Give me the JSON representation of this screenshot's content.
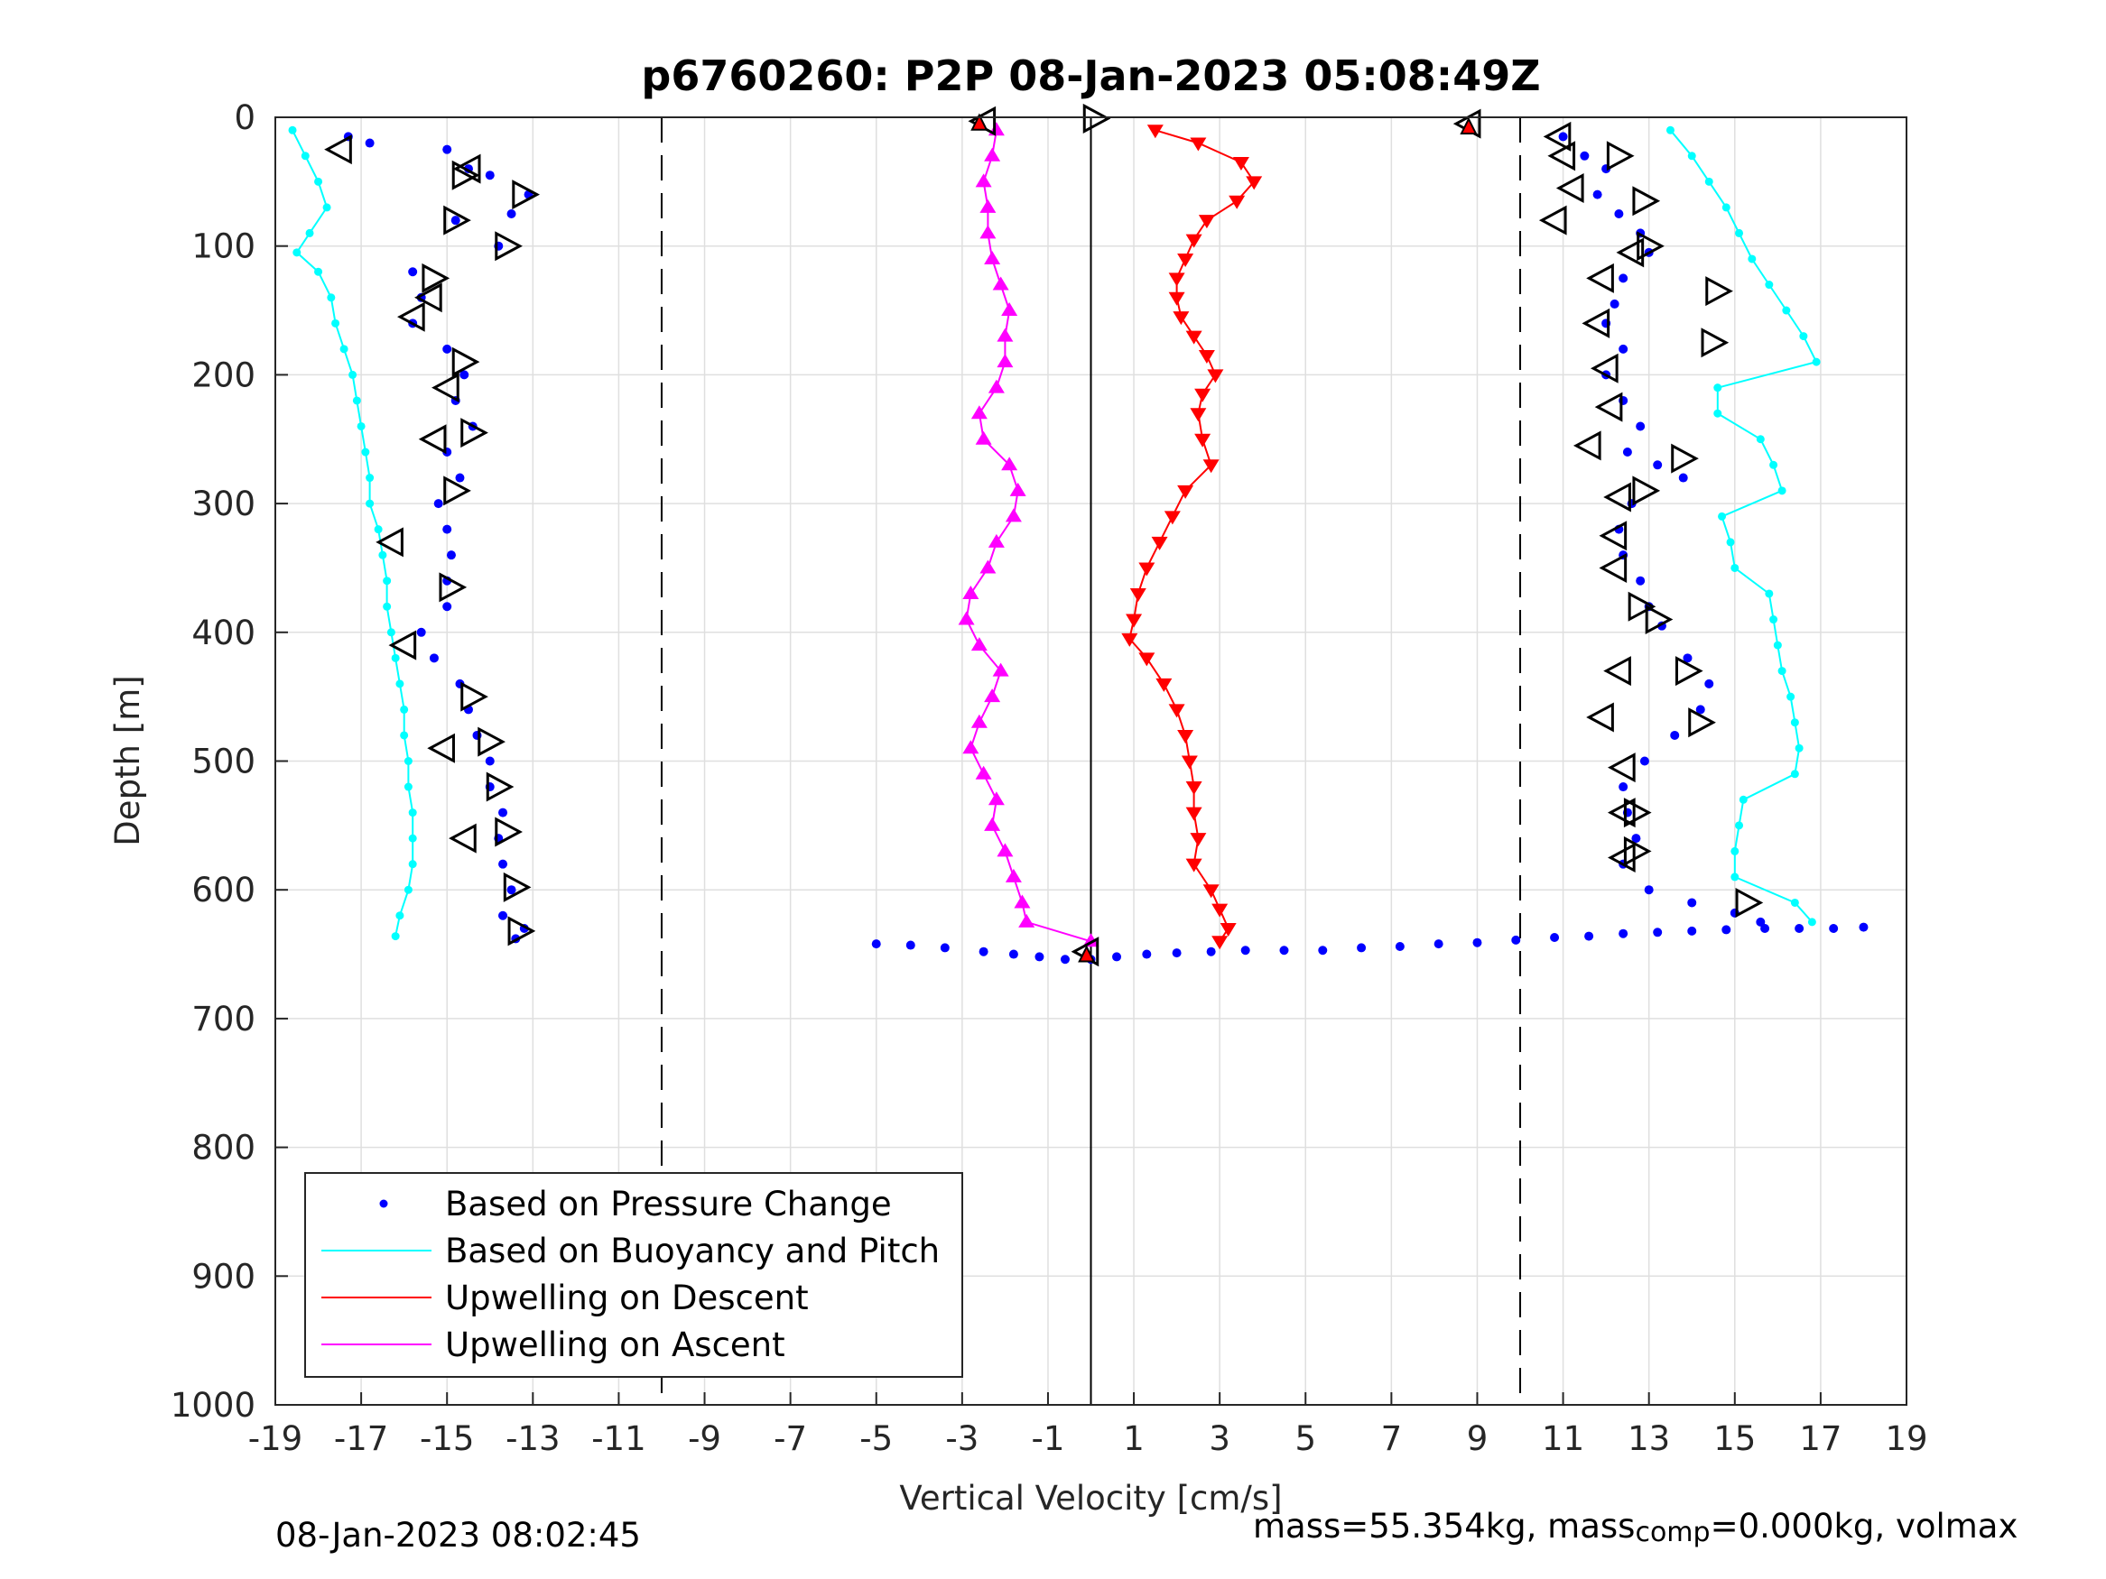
{
  "chart_data": {
    "type": "scatter",
    "title": "p6760260: P2P 08-Jan-2023 05:08:49Z",
    "xlabel": "Vertical Velocity [cm/s]",
    "ylabel": "Depth [m]",
    "xlim": [
      -19,
      19
    ],
    "ylim": [
      0,
      1000
    ],
    "y_reversed": true,
    "grid": true,
    "xticks": [
      "-19",
      "-17",
      "-15",
      "-13",
      "-11",
      "-9",
      "-7",
      "-5",
      "-3",
      "-1",
      "1",
      "3",
      "5",
      "7",
      "9",
      "11",
      "13",
      "15",
      "17",
      "19"
    ],
    "yticks": [
      "0",
      "100",
      "200",
      "300",
      "400",
      "500",
      "600",
      "700",
      "800",
      "900",
      "1000"
    ],
    "reference_lines": {
      "dashed_x": [
        -10,
        10
      ],
      "solid_x": [
        0
      ]
    },
    "legend": {
      "position": "bottom-left",
      "entries": [
        {
          "label": "Based on Pressure Change",
          "color": "#0000ff",
          "style": "dot"
        },
        {
          "label": "Based on Buoyancy and Pitch",
          "color": "#00ffff",
          "style": "line"
        },
        {
          "label": "Upwelling on Descent",
          "color": "#ff0000",
          "style": "line"
        },
        {
          "label": "Upwelling on Ascent",
          "color": "#ff00ff",
          "style": "line"
        }
      ]
    },
    "series": [
      {
        "key": "pressure_down",
        "color": "#0000ff",
        "points": [
          [
            -17.3,
            15
          ],
          [
            -16.8,
            20
          ],
          [
            -15.0,
            25
          ],
          [
            -14.5,
            40
          ],
          [
            -14.0,
            45
          ],
          [
            -13.1,
            60
          ],
          [
            -13.5,
            75
          ],
          [
            -14.8,
            80
          ],
          [
            -13.8,
            100
          ],
          [
            -15.8,
            120
          ],
          [
            -15.6,
            140
          ],
          [
            -15.8,
            160
          ],
          [
            -15.0,
            180
          ],
          [
            -14.6,
            200
          ],
          [
            -14.8,
            220
          ],
          [
            -14.4,
            240
          ],
          [
            -15.0,
            260
          ],
          [
            -14.7,
            280
          ],
          [
            -15.2,
            300
          ],
          [
            -15.0,
            320
          ],
          [
            -14.9,
            340
          ],
          [
            -15.0,
            360
          ],
          [
            -15.0,
            380
          ],
          [
            -15.6,
            400
          ],
          [
            -15.3,
            420
          ],
          [
            -14.7,
            440
          ],
          [
            -14.5,
            460
          ],
          [
            -14.3,
            480
          ],
          [
            -14.0,
            500
          ],
          [
            -14.0,
            520
          ],
          [
            -13.7,
            540
          ],
          [
            -13.8,
            560
          ],
          [
            -13.7,
            580
          ],
          [
            -13.5,
            600
          ],
          [
            -13.7,
            620
          ],
          [
            -13.2,
            630
          ],
          [
            -13.4,
            638
          ]
        ]
      },
      {
        "key": "pressure_up",
        "color": "#0000ff",
        "points": [
          [
            11.0,
            15
          ],
          [
            11.5,
            30
          ],
          [
            12.0,
            40
          ],
          [
            11.8,
            60
          ],
          [
            12.3,
            75
          ],
          [
            12.8,
            90
          ],
          [
            13.0,
            105
          ],
          [
            12.4,
            125
          ],
          [
            12.2,
            145
          ],
          [
            12.0,
            160
          ],
          [
            12.4,
            180
          ],
          [
            12.0,
            200
          ],
          [
            12.4,
            220
          ],
          [
            12.8,
            240
          ],
          [
            12.5,
            260
          ],
          [
            13.2,
            270
          ],
          [
            13.8,
            280
          ],
          [
            12.6,
            300
          ],
          [
            12.3,
            320
          ],
          [
            12.4,
            340
          ],
          [
            12.8,
            360
          ],
          [
            13.0,
            380
          ],
          [
            13.3,
            395
          ],
          [
            13.9,
            420
          ],
          [
            14.4,
            440
          ],
          [
            14.2,
            460
          ],
          [
            13.6,
            480
          ],
          [
            12.9,
            500
          ],
          [
            12.4,
            520
          ],
          [
            12.5,
            540
          ],
          [
            12.7,
            560
          ],
          [
            12.4,
            580
          ],
          [
            13.0,
            600
          ],
          [
            14.0,
            610
          ],
          [
            15.0,
            618
          ],
          [
            15.6,
            625
          ]
        ]
      },
      {
        "key": "pressure_bottom",
        "color": "#0000ff",
        "points": [
          [
            -5.0,
            642
          ],
          [
            -4.2,
            643
          ],
          [
            -3.4,
            645
          ],
          [
            -2.5,
            648
          ],
          [
            -1.8,
            650
          ],
          [
            -1.2,
            652
          ],
          [
            -0.6,
            654
          ],
          [
            0.0,
            654
          ],
          [
            0.6,
            652
          ],
          [
            1.3,
            650
          ],
          [
            2.0,
            649
          ],
          [
            2.8,
            648
          ],
          [
            3.6,
            647
          ],
          [
            4.5,
            647
          ],
          [
            5.4,
            647
          ],
          [
            6.3,
            645
          ],
          [
            7.2,
            644
          ],
          [
            8.1,
            642
          ],
          [
            9.0,
            641
          ],
          [
            9.9,
            639
          ],
          [
            10.8,
            637
          ],
          [
            11.6,
            636
          ],
          [
            12.4,
            634
          ],
          [
            13.2,
            633
          ],
          [
            14.0,
            632
          ],
          [
            14.8,
            631
          ],
          [
            15.7,
            630
          ],
          [
            16.5,
            630
          ],
          [
            17.3,
            630
          ],
          [
            18.0,
            629
          ]
        ]
      },
      {
        "key": "buoyancy_down",
        "color": "#00ffff",
        "points": [
          [
            -18.6,
            10
          ],
          [
            -18.3,
            30
          ],
          [
            -18.0,
            50
          ],
          [
            -17.8,
            70
          ],
          [
            -18.2,
            90
          ],
          [
            -18.5,
            105
          ],
          [
            -18.0,
            120
          ],
          [
            -17.7,
            140
          ],
          [
            -17.6,
            160
          ],
          [
            -17.4,
            180
          ],
          [
            -17.2,
            200
          ],
          [
            -17.1,
            220
          ],
          [
            -17.0,
            240
          ],
          [
            -16.9,
            260
          ],
          [
            -16.8,
            280
          ],
          [
            -16.8,
            300
          ],
          [
            -16.6,
            320
          ],
          [
            -16.5,
            340
          ],
          [
            -16.4,
            360
          ],
          [
            -16.4,
            380
          ],
          [
            -16.3,
            400
          ],
          [
            -16.2,
            420
          ],
          [
            -16.1,
            440
          ],
          [
            -16.0,
            460
          ],
          [
            -16.0,
            480
          ],
          [
            -15.9,
            500
          ],
          [
            -15.9,
            520
          ],
          [
            -15.8,
            540
          ],
          [
            -15.8,
            560
          ],
          [
            -15.8,
            580
          ],
          [
            -15.9,
            600
          ],
          [
            -16.1,
            620
          ],
          [
            -16.2,
            636
          ]
        ]
      },
      {
        "key": "buoyancy_up",
        "color": "#00ffff",
        "points": [
          [
            13.5,
            10
          ],
          [
            14.0,
            30
          ],
          [
            14.4,
            50
          ],
          [
            14.8,
            70
          ],
          [
            15.1,
            90
          ],
          [
            15.4,
            110
          ],
          [
            15.8,
            130
          ],
          [
            16.2,
            150
          ],
          [
            16.6,
            170
          ],
          [
            16.9,
            190
          ],
          [
            14.6,
            210
          ],
          [
            14.6,
            230
          ],
          [
            15.6,
            250
          ],
          [
            15.9,
            270
          ],
          [
            16.1,
            290
          ],
          [
            14.7,
            310
          ],
          [
            14.9,
            330
          ],
          [
            15.0,
            350
          ],
          [
            15.8,
            370
          ],
          [
            15.9,
            390
          ],
          [
            16.0,
            410
          ],
          [
            16.1,
            430
          ],
          [
            16.3,
            450
          ],
          [
            16.4,
            470
          ],
          [
            16.5,
            490
          ],
          [
            16.4,
            510
          ],
          [
            15.2,
            530
          ],
          [
            15.1,
            550
          ],
          [
            15.0,
            570
          ],
          [
            15.0,
            590
          ],
          [
            16.4,
            610
          ],
          [
            16.8,
            625
          ]
        ]
      },
      {
        "key": "upwelling_descent",
        "color": "#ff0000",
        "points": [
          [
            1.5,
            10
          ],
          [
            2.5,
            20
          ],
          [
            3.5,
            35
          ],
          [
            3.8,
            50
          ],
          [
            3.4,
            65
          ],
          [
            2.7,
            80
          ],
          [
            2.4,
            95
          ],
          [
            2.2,
            110
          ],
          [
            2.0,
            125
          ],
          [
            2.0,
            140
          ],
          [
            2.1,
            155
          ],
          [
            2.4,
            170
          ],
          [
            2.7,
            185
          ],
          [
            2.9,
            200
          ],
          [
            2.6,
            215
          ],
          [
            2.5,
            230
          ],
          [
            2.6,
            250
          ],
          [
            2.8,
            270
          ],
          [
            2.2,
            290
          ],
          [
            1.9,
            310
          ],
          [
            1.6,
            330
          ],
          [
            1.3,
            350
          ],
          [
            1.1,
            370
          ],
          [
            1.0,
            390
          ],
          [
            0.9,
            405
          ],
          [
            1.3,
            420
          ],
          [
            1.7,
            440
          ],
          [
            2.0,
            460
          ],
          [
            2.2,
            480
          ],
          [
            2.3,
            500
          ],
          [
            2.4,
            520
          ],
          [
            2.4,
            540
          ],
          [
            2.5,
            560
          ],
          [
            2.4,
            580
          ],
          [
            2.8,
            600
          ],
          [
            3.0,
            615
          ],
          [
            3.2,
            630
          ],
          [
            3.0,
            640
          ]
        ]
      },
      {
        "key": "upwelling_ascent",
        "color": "#ff00ff",
        "points": [
          [
            -2.2,
            10
          ],
          [
            -2.3,
            30
          ],
          [
            -2.5,
            50
          ],
          [
            -2.4,
            70
          ],
          [
            -2.4,
            90
          ],
          [
            -2.3,
            110
          ],
          [
            -2.1,
            130
          ],
          [
            -1.9,
            150
          ],
          [
            -2.0,
            170
          ],
          [
            -2.0,
            190
          ],
          [
            -2.2,
            210
          ],
          [
            -2.6,
            230
          ],
          [
            -2.5,
            250
          ],
          [
            -1.9,
            270
          ],
          [
            -1.7,
            290
          ],
          [
            -1.8,
            310
          ],
          [
            -2.2,
            330
          ],
          [
            -2.4,
            350
          ],
          [
            -2.8,
            370
          ],
          [
            -2.9,
            390
          ],
          [
            -2.6,
            410
          ],
          [
            -2.1,
            430
          ],
          [
            -2.3,
            450
          ],
          [
            -2.6,
            470
          ],
          [
            -2.8,
            490
          ],
          [
            -2.5,
            510
          ],
          [
            -2.2,
            530
          ],
          [
            -2.3,
            550
          ],
          [
            -2.0,
            570
          ],
          [
            -1.8,
            590
          ],
          [
            -1.6,
            610
          ],
          [
            -1.5,
            625
          ],
          [
            0.0,
            640
          ]
        ]
      }
    ],
    "markers": {
      "triangle_left": [
        [
          -17.5,
          25
        ],
        [
          -14.5,
          40
        ],
        [
          -15.4,
          140
        ],
        [
          -15.8,
          155
        ],
        [
          -15.0,
          210
        ],
        [
          -15.3,
          250
        ],
        [
          -16.3,
          330
        ],
        [
          -16.0,
          410
        ],
        [
          -15.1,
          490
        ],
        [
          -14.6,
          560
        ],
        [
          -2.5,
          3
        ],
        [
          10.9,
          15
        ],
        [
          11.0,
          30
        ],
        [
          11.2,
          55
        ],
        [
          10.8,
          80
        ],
        [
          12.6,
          105
        ],
        [
          11.9,
          125
        ],
        [
          11.8,
          160
        ],
        [
          12.0,
          195
        ],
        [
          12.1,
          225
        ],
        [
          11.6,
          255
        ],
        [
          12.3,
          295
        ],
        [
          12.2,
          325
        ],
        [
          12.2,
          350
        ],
        [
          12.3,
          430
        ],
        [
          11.9,
          466
        ],
        [
          12.4,
          505
        ],
        [
          12.4,
          540
        ],
        [
          12.4,
          575
        ],
        [
          8.8,
          5
        ],
        [
          -0.1,
          648
        ]
      ],
      "triangle_right": [
        [
          -14.6,
          45
        ],
        [
          -13.2,
          60
        ],
        [
          -14.8,
          80
        ],
        [
          -13.6,
          100
        ],
        [
          -15.3,
          125
        ],
        [
          -14.6,
          190
        ],
        [
          -14.4,
          245
        ],
        [
          -14.8,
          290
        ],
        [
          -14.9,
          365
        ],
        [
          -14.4,
          450
        ],
        [
          -14.0,
          485
        ],
        [
          -13.8,
          520
        ],
        [
          -13.6,
          555
        ],
        [
          -13.4,
          598
        ],
        [
          -13.3,
          632
        ],
        [
          0.1,
          1
        ],
        [
          12.3,
          30
        ],
        [
          12.9,
          65
        ],
        [
          13.0,
          100
        ],
        [
          14.6,
          135
        ],
        [
          14.5,
          175
        ],
        [
          13.8,
          265
        ],
        [
          12.9,
          290
        ],
        [
          12.8,
          380
        ],
        [
          13.2,
          390
        ],
        [
          13.9,
          430
        ],
        [
          14.2,
          470
        ],
        [
          12.7,
          540
        ],
        [
          12.7,
          570
        ],
        [
          15.3,
          610
        ]
      ],
      "red_triangle": [
        [
          -2.6,
          4
        ],
        [
          8.8,
          7
        ],
        [
          -0.1,
          650
        ]
      ]
    }
  },
  "footer": {
    "left": "08-Jan-2023 08:02:45",
    "right_pre": "mass=55.354kg, mass",
    "right_sub": "comp",
    "right_post": "=0.000kg, volmax"
  }
}
